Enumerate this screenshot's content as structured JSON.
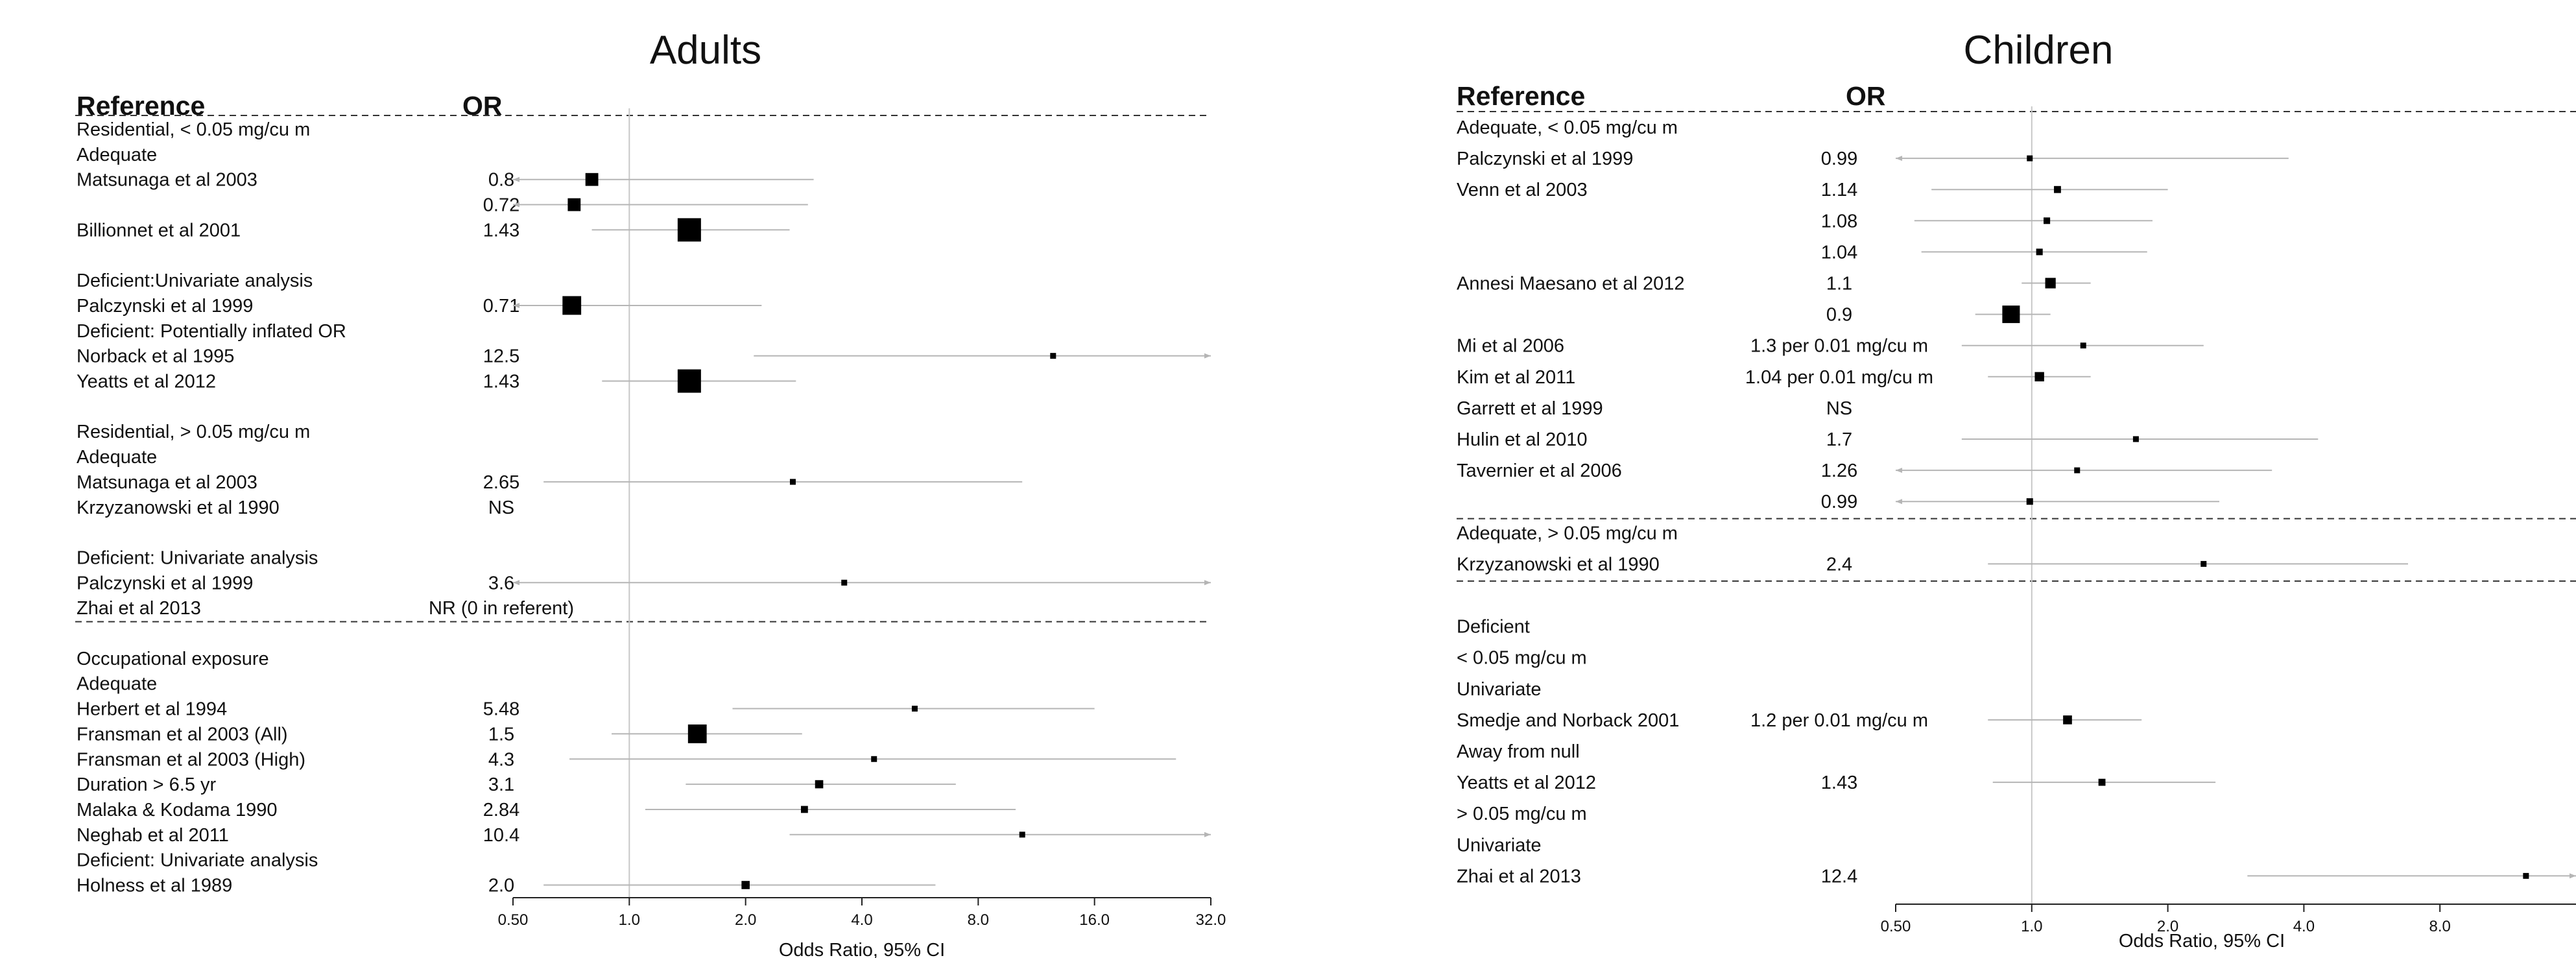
{
  "chart_data": [
    {
      "type": "forest",
      "title": "Adults",
      "header": {
        "reference": "Reference",
        "or": "OR"
      },
      "xlabel": "Odds Ratio, 95% CI",
      "x_scale": "log2",
      "xlim": [
        0.5,
        32.0
      ],
      "ticks": [
        "0.50",
        "1.0",
        "2.0",
        "4.0",
        "8.0",
        "16.0",
        "32.0"
      ],
      "rows": [
        {
          "label": "Residential, < 0.05 mg/cu m",
          "or": ""
        },
        {
          "label": "Adequate",
          "or": ""
        },
        {
          "label": "Matsunaga et al 2003",
          "or": "0.8",
          "est": 0.8,
          "lo": 0.5,
          "hi": 3.0,
          "lo_arrow": true,
          "size": 0.55
        },
        {
          "label": "",
          "or": "0.72",
          "est": 0.72,
          "lo": 0.5,
          "hi": 2.9,
          "lo_arrow": true,
          "size": 0.55
        },
        {
          "label": "Billionnet et al 2001",
          "or": "1.43",
          "est": 1.43,
          "lo": 0.8,
          "hi": 2.6,
          "size": 1.0
        },
        {
          "label": "",
          "or": ""
        },
        {
          "label": "Deficient:Univariate analysis",
          "or": ""
        },
        {
          "label": "Palczynski et al 1999",
          "or": "0.71",
          "est": 0.71,
          "lo": 0.5,
          "hi": 2.2,
          "lo_arrow": true,
          "size": 0.8
        },
        {
          "label": "Deficient: Potentially inflated OR",
          "or": ""
        },
        {
          "label": "Norback et al 1995",
          "or": "12.5",
          "est": 12.5,
          "lo": 2.1,
          "hi": 32.0,
          "hi_arrow": true,
          "size": 0.2
        },
        {
          "label": "Yeatts et al 2012",
          "or": "1.43",
          "est": 1.43,
          "lo": 0.85,
          "hi": 2.7,
          "size": 1.0
        },
        {
          "label": "",
          "or": ""
        },
        {
          "label": "Residential, > 0.05 mg/cu m",
          "or": ""
        },
        {
          "label": "Adequate",
          "or": ""
        },
        {
          "label": "Matsunaga et al 2003",
          "or": "2.65",
          "est": 2.65,
          "lo": 0.6,
          "hi": 10.4,
          "size": 0.22
        },
        {
          "label": "Krzyzanowski et al 1990",
          "or": "NS"
        },
        {
          "label": "",
          "or": ""
        },
        {
          "label": "Deficient: Univariate analysis",
          "or": ""
        },
        {
          "label": "Palczynski et al 1999",
          "or": "3.6",
          "est": 3.6,
          "lo": 0.5,
          "hi": 32.0,
          "lo_arrow": true,
          "hi_arrow": true,
          "size": 0.18
        },
        {
          "label": "Zhai et al 2013",
          "or": "NR (0 in referent)"
        },
        {
          "label": "",
          "or": ""
        },
        {
          "label": "Occupational exposure",
          "or": ""
        },
        {
          "label": "Adequate",
          "or": ""
        },
        {
          "label": "Herbert et al 1994",
          "or": "5.48",
          "est": 5.48,
          "lo": 1.85,
          "hi": 16.0,
          "size": 0.2
        },
        {
          "label": "Fransman et al 2003 (All)",
          "or": "1.5",
          "est": 1.5,
          "lo": 0.9,
          "hi": 2.8,
          "size": 0.8
        },
        {
          "label": "Fransman et al 2003 (High)",
          "or": "4.3",
          "est": 4.3,
          "lo": 0.7,
          "hi": 26.0,
          "size": 0.2
        },
        {
          "label": "Duration > 6.5 yr",
          "or": "3.1",
          "est": 3.1,
          "lo": 1.4,
          "hi": 7.0,
          "size": 0.35
        },
        {
          "label": "Malaka & Kodama 1990",
          "or": "2.84",
          "est": 2.84,
          "lo": 1.1,
          "hi": 10.0,
          "size": 0.3
        },
        {
          "label": "Neghab et al 2011",
          "or": "10.4",
          "est": 10.4,
          "lo": 2.6,
          "hi": 32.0,
          "hi_arrow": true,
          "size": 0.2
        },
        {
          "label": "Deficient: Univariate analysis",
          "or": ""
        },
        {
          "label": "Holness et al 1989",
          "or": "2.0",
          "est": 2.0,
          "lo": 0.6,
          "hi": 6.2,
          "size": 0.35
        }
      ],
      "dividers_after": [
        "Billionnet et al 2001:none",
        "Zhai et al 2013"
      ]
    },
    {
      "type": "forest",
      "title": "Children",
      "header": {
        "reference": "Reference",
        "or": "OR"
      },
      "xlabel": "Odds Ratio, 95% CI",
      "x_scale": "log2",
      "xlim": [
        0.5,
        16.0
      ],
      "ticks": [
        "0.50",
        "1.0",
        "2.0",
        "4.0",
        "8.0"
      ],
      "rows": [
        {
          "label": "Adequate, < 0.05 mg/cu m",
          "or": ""
        },
        {
          "label": "Palczynski et al 1999",
          "or": "0.99",
          "est": 0.99,
          "lo": 0.5,
          "hi": 3.7,
          "lo_arrow": true,
          "size": 0.2
        },
        {
          "label": "Venn et al 2003",
          "or": "1.14",
          "est": 1.14,
          "lo": 0.6,
          "hi": 2.0,
          "size": 0.3
        },
        {
          "label": "",
          "or": "1.08",
          "est": 1.08,
          "lo": 0.55,
          "hi": 1.85,
          "size": 0.28
        },
        {
          "label": "",
          "or": "1.04",
          "est": 1.04,
          "lo": 0.57,
          "hi": 1.8,
          "size": 0.28
        },
        {
          "label": "Annesi Maesano et al 2012",
          "or": "1.1",
          "est": 1.1,
          "lo": 0.95,
          "hi": 1.35,
          "size": 0.45
        },
        {
          "label": "",
          "or": "0.9",
          "est": 0.9,
          "lo": 0.75,
          "hi": 1.1,
          "size": 0.75
        },
        {
          "label": "Mi et al 2006",
          "or": "1.3 per 0.01 mg/cu m",
          "est": 1.3,
          "lo": 0.7,
          "hi": 2.4,
          "size": 0.25
        },
        {
          "label": "Kim et al 2011",
          "or": "1.04 per 0.01 mg/cu m",
          "est": 1.04,
          "lo": 0.8,
          "hi": 1.35,
          "size": 0.4
        },
        {
          "label": "Garrett et al 1999",
          "or": "NS"
        },
        {
          "label": "Hulin et al 2010",
          "or": "1.7",
          "est": 1.7,
          "lo": 0.7,
          "hi": 4.3,
          "size": 0.22
        },
        {
          "label": "Tavernier et al 2006",
          "or": "1.26",
          "est": 1.26,
          "lo": 0.5,
          "hi": 3.4,
          "lo_arrow": true,
          "size": 0.22
        },
        {
          "label": "",
          "or": "0.99",
          "est": 0.99,
          "lo": 0.5,
          "hi": 2.6,
          "lo_arrow": true,
          "size": 0.28
        },
        {
          "label": "Adequate, > 0.05 mg/cu m",
          "or": ""
        },
        {
          "label": "Krzyzanowski et al 1990",
          "or": "2.4",
          "est": 2.4,
          "lo": 0.8,
          "hi": 6.8,
          "size": 0.2
        },
        {
          "label": "",
          "or": ""
        },
        {
          "label": "Deficient",
          "or": ""
        },
        {
          "label": "< 0.05 mg/cu m",
          "or": ""
        },
        {
          "label": "Univariate",
          "or": ""
        },
        {
          "label": "Smedje and Norback 2001",
          "or": "1.2 per 0.01 mg/cu m",
          "est": 1.2,
          "lo": 0.8,
          "hi": 1.75,
          "size": 0.38
        },
        {
          "label": "Away from null",
          "or": ""
        },
        {
          "label": "Yeatts et al 2012",
          "or": "1.43",
          "est": 1.43,
          "lo": 0.82,
          "hi": 2.55,
          "size": 0.3
        },
        {
          "label": "> 0.05 mg/cu m",
          "or": ""
        },
        {
          "label": "Univariate",
          "or": ""
        },
        {
          "label": "Zhai et al 2013",
          "or": "12.4",
          "est": 12.4,
          "lo": 3.0,
          "hi": 16.0,
          "hi_arrow": true,
          "size": 0.2
        }
      ]
    }
  ]
}
